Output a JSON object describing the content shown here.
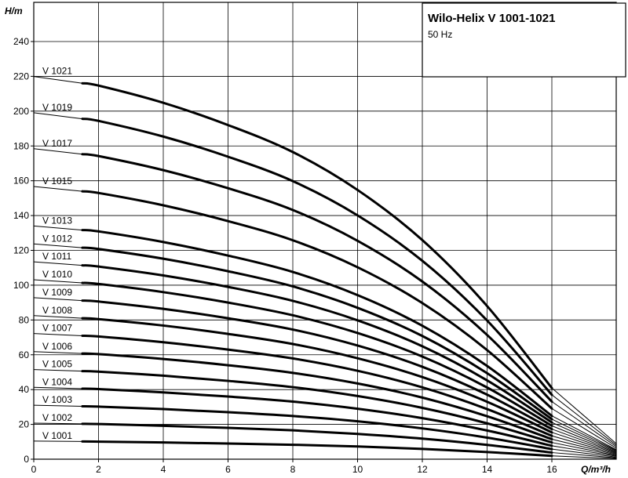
{
  "chart_data": {
    "type": "line",
    "title": "Wilo-Helix V 1001-1021",
    "subtitle": "50 Hz",
    "xlabel": "Q/m³/h",
    "ylabel": "H/m",
    "xlim": [
      0,
      18
    ],
    "ylim": [
      0,
      250
    ],
    "xticks": [
      0,
      2,
      4,
      6,
      8,
      10,
      12,
      14,
      16
    ],
    "yticks": [
      0,
      20,
      40,
      60,
      80,
      100,
      120,
      140,
      160,
      180,
      200,
      220,
      240
    ],
    "grid": true,
    "q_end": 18,
    "series": [
      {
        "name": "V 1001",
        "values": [
          [
            0,
            10.4
          ],
          [
            2,
            10.1
          ],
          [
            4,
            9.6
          ],
          [
            6,
            9
          ],
          [
            8,
            8.3
          ],
          [
            10,
            7.3
          ],
          [
            12,
            5.9
          ],
          [
            14,
            4.1
          ],
          [
            16,
            1.9
          ],
          [
            18,
            0.4
          ]
        ]
      },
      {
        "name": "V 1002",
        "values": [
          [
            0,
            20.7
          ],
          [
            2,
            20.2
          ],
          [
            4,
            19.2
          ],
          [
            6,
            18
          ],
          [
            8,
            16.6
          ],
          [
            10,
            14.5
          ],
          [
            12,
            11.8
          ],
          [
            14,
            8.2
          ],
          [
            16,
            3.8
          ],
          [
            18,
            0.8
          ]
        ]
      },
      {
        "name": "V 1003",
        "values": [
          [
            0,
            31
          ],
          [
            2,
            30.2
          ],
          [
            4,
            28.8
          ],
          [
            6,
            27
          ],
          [
            8,
            24.8
          ],
          [
            10,
            21.8
          ],
          [
            12,
            17.7
          ],
          [
            14,
            12.4
          ],
          [
            16,
            5.8
          ],
          [
            18,
            1.2
          ]
        ]
      },
      {
        "name": "V 1004",
        "values": [
          [
            0,
            41.3
          ],
          [
            2,
            40.3
          ],
          [
            4,
            38.4
          ],
          [
            6,
            36
          ],
          [
            8,
            33.1
          ],
          [
            10,
            29
          ],
          [
            12,
            23.6
          ],
          [
            14,
            16.5
          ],
          [
            16,
            7.7
          ],
          [
            18,
            1.7
          ]
        ]
      },
      {
        "name": "V 1005",
        "values": [
          [
            0,
            51.5
          ],
          [
            2,
            50.3
          ],
          [
            4,
            48
          ],
          [
            6,
            45
          ],
          [
            8,
            41.4
          ],
          [
            10,
            36.3
          ],
          [
            12,
            29.5
          ],
          [
            14,
            20.6
          ],
          [
            16,
            9.6
          ],
          [
            18,
            2.1
          ]
        ]
      },
      {
        "name": "V 1006",
        "values": [
          [
            0,
            61.8
          ],
          [
            2,
            60.4
          ],
          [
            4,
            57.6
          ],
          [
            6,
            54
          ],
          [
            8,
            49.6
          ],
          [
            10,
            43.5
          ],
          [
            12,
            35.4
          ],
          [
            14,
            24.7
          ],
          [
            16,
            11.5
          ],
          [
            18,
            2.5
          ]
        ]
      },
      {
        "name": "V 1007",
        "values": [
          [
            0,
            72.2
          ],
          [
            2,
            70.5
          ],
          [
            4,
            67.2
          ],
          [
            6,
            63
          ],
          [
            8,
            57.9
          ],
          [
            10,
            50.8
          ],
          [
            12,
            41.3
          ],
          [
            14,
            28.8
          ],
          [
            16,
            13.4
          ],
          [
            18,
            2.9
          ]
        ]
      },
      {
        "name": "V 1008",
        "values": [
          [
            0,
            82.5
          ],
          [
            2,
            80.5
          ],
          [
            4,
            76.8
          ],
          [
            6,
            72
          ],
          [
            8,
            66.2
          ],
          [
            10,
            58
          ],
          [
            12,
            47.2
          ],
          [
            14,
            33
          ],
          [
            16,
            15.4
          ],
          [
            18,
            3.3
          ]
        ]
      },
      {
        "name": "V 1009",
        "values": [
          [
            0,
            92.8
          ],
          [
            2,
            90.6
          ],
          [
            4,
            86.4
          ],
          [
            6,
            81
          ],
          [
            8,
            74.5
          ],
          [
            10,
            65.3
          ],
          [
            12,
            53.1
          ],
          [
            14,
            37.1
          ],
          [
            16,
            17.3
          ],
          [
            18,
            3.7
          ]
        ]
      },
      {
        "name": "V 1010",
        "values": [
          [
            0,
            103.1
          ],
          [
            2,
            100.7
          ],
          [
            4,
            96
          ],
          [
            6,
            90
          ],
          [
            8,
            82.7
          ],
          [
            10,
            72.5
          ],
          [
            12,
            59
          ],
          [
            14,
            41.2
          ],
          [
            16,
            19.2
          ],
          [
            18,
            4.1
          ]
        ]
      },
      {
        "name": "V 1011",
        "values": [
          [
            0,
            113.4
          ],
          [
            2,
            110.7
          ],
          [
            4,
            105.6
          ],
          [
            6,
            99
          ],
          [
            8,
            91
          ],
          [
            10,
            79.8
          ],
          [
            12,
            64.9
          ],
          [
            14,
            45.3
          ],
          [
            16,
            21.1
          ],
          [
            18,
            4.6
          ]
        ]
      },
      {
        "name": "V 1012",
        "values": [
          [
            0,
            123.7
          ],
          [
            2,
            120.8
          ],
          [
            4,
            115.2
          ],
          [
            6,
            108
          ],
          [
            8,
            99.3
          ],
          [
            10,
            87
          ],
          [
            12,
            70.8
          ],
          [
            14,
            49.4
          ],
          [
            16,
            23
          ],
          [
            18,
            5
          ]
        ]
      },
      {
        "name": "V 1013",
        "values": [
          [
            0,
            134
          ],
          [
            2,
            130.9
          ],
          [
            4,
            124.8
          ],
          [
            6,
            117
          ],
          [
            8,
            107.6
          ],
          [
            10,
            94.3
          ],
          [
            12,
            76.7
          ],
          [
            14,
            53.6
          ],
          [
            16,
            24.9
          ],
          [
            18,
            5.4
          ]
        ]
      },
      {
        "name": "V 1015",
        "values": [
          [
            0,
            156.7
          ],
          [
            2,
            153
          ],
          [
            4,
            145.9
          ],
          [
            6,
            136.8
          ],
          [
            8,
            125.8
          ],
          [
            10,
            110.3
          ],
          [
            12,
            89.7
          ],
          [
            14,
            62.7
          ],
          [
            16,
            29.1
          ],
          [
            18,
            6.2
          ]
        ]
      },
      {
        "name": "V 1017",
        "values": [
          [
            0,
            178.4
          ],
          [
            2,
            174.2
          ],
          [
            4,
            166.1
          ],
          [
            6,
            155.7
          ],
          [
            8,
            143.2
          ],
          [
            10,
            125.5
          ],
          [
            12,
            102.1
          ],
          [
            14,
            71.4
          ],
          [
            16,
            33.1
          ],
          [
            18,
            7.1
          ]
        ]
      },
      {
        "name": "V 1019",
        "values": [
          [
            0,
            199.1
          ],
          [
            2,
            194.4
          ],
          [
            4,
            185.4
          ],
          [
            6,
            173.8
          ],
          [
            8,
            159.8
          ],
          [
            10,
            140.1
          ],
          [
            12,
            114
          ],
          [
            14,
            79.7
          ],
          [
            16,
            37
          ],
          [
            18,
            7.9
          ]
        ]
      },
      {
        "name": "V 1021",
        "values": [
          [
            0,
            219.9
          ],
          [
            2,
            214.7
          ],
          [
            4,
            204.8
          ],
          [
            6,
            192
          ],
          [
            8,
            176.5
          ],
          [
            10,
            154.7
          ],
          [
            12,
            125.9
          ],
          [
            14,
            88
          ],
          [
            16,
            40.9
          ],
          [
            18,
            8.8
          ]
        ]
      }
    ]
  }
}
